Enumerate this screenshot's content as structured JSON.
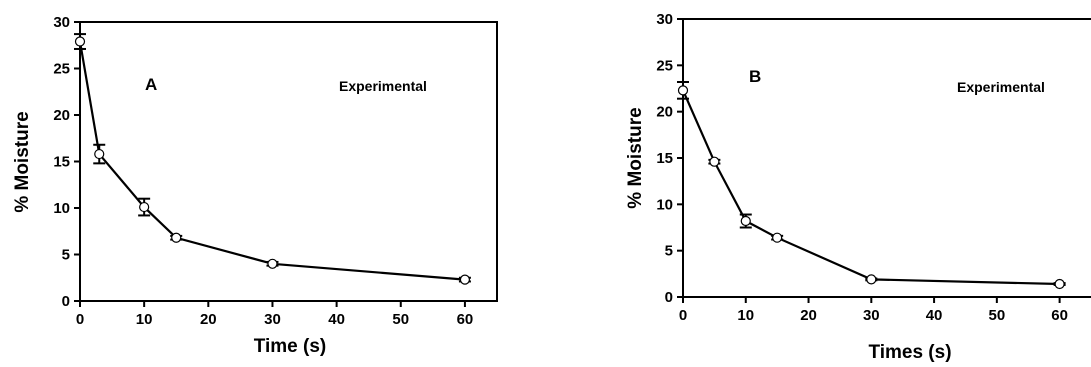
{
  "chart_data": [
    {
      "type": "line",
      "panel_label": "A",
      "annotation": "Experimental",
      "xlabel": "Time (s)",
      "ylabel": "% Moisture",
      "xlim": [
        0,
        65
      ],
      "ylim": [
        0,
        30
      ],
      "x_ticks": [
        0,
        10,
        20,
        30,
        40,
        50,
        60
      ],
      "y_ticks": [
        0,
        5,
        10,
        15,
        20,
        25,
        30
      ],
      "grid": false,
      "x": [
        0,
        3,
        10,
        15,
        30,
        60
      ],
      "y": [
        27.9,
        15.8,
        10.1,
        6.8,
        4.0,
        2.3
      ],
      "error": [
        0.8,
        1.0,
        0.9,
        0.2,
        0.2,
        0.2
      ],
      "marker": "open-circle",
      "line_color": "#000000"
    },
    {
      "type": "line",
      "panel_label": "B",
      "annotation": "Experimental",
      "xlabel": "Times (s)",
      "ylabel": "% Moisture",
      "xlim": [
        0,
        65
      ],
      "ylim": [
        0,
        30
      ],
      "x_ticks": [
        0,
        10,
        20,
        30,
        40,
        50,
        60
      ],
      "y_ticks": [
        0,
        5,
        10,
        15,
        20,
        25,
        30
      ],
      "grid": false,
      "x": [
        0,
        5,
        10,
        15,
        30,
        60
      ],
      "y": [
        22.3,
        14.6,
        8.2,
        6.4,
        1.9,
        1.4
      ],
      "error": [
        0.9,
        0.2,
        0.7,
        0.2,
        0.1,
        0.1
      ],
      "marker": "open-circle",
      "line_color": "#000000"
    }
  ]
}
